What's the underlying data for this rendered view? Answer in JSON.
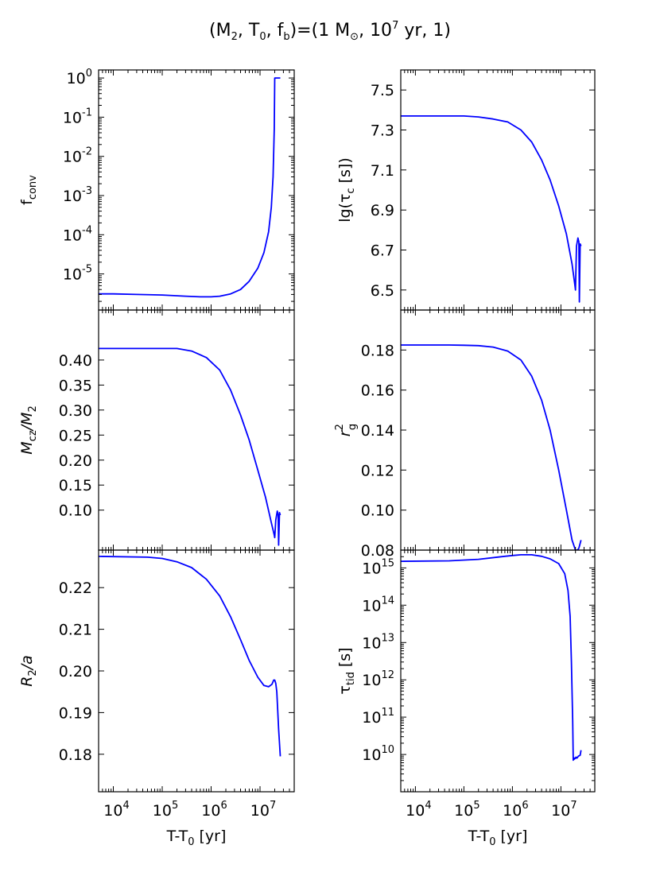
{
  "figure": {
    "title": "(M₂, T₀, f_b)=(1 M☉, 10⁷ yr, 1)",
    "title_parts": {
      "a": "(M",
      "a_sub": "2",
      "b": ", T",
      "b_sub": "0",
      "c": ", f",
      "c_sub": "b",
      "d": ")=(1 M",
      "d_sub": "⊙",
      "e": ", 10",
      "e_sup": "7",
      "f": " yr, 1)"
    },
    "line_color": "#0000ff"
  },
  "chart_data": [
    {
      "type": "line",
      "panel": "left-top",
      "ylabel": "f_conv",
      "ylabel_parts": {
        "main": "f",
        "sub": "conv"
      },
      "xscale": "log",
      "yscale": "log",
      "xlim": [
        5000,
        50000000
      ],
      "ylim": [
        1.2e-06,
        1.6
      ],
      "yticks": [
        {
          "value": 1,
          "base": "10",
          "exp": "0"
        },
        {
          "value": 0.1,
          "base": "10",
          "exp": "-1"
        },
        {
          "value": 0.01,
          "base": "10",
          "exp": "-2"
        },
        {
          "value": 0.001,
          "base": "10",
          "exp": "-3"
        },
        {
          "value": 0.0001,
          "base": "10",
          "exp": "-4"
        },
        {
          "value": 1e-05,
          "base": "10",
          "exp": "-5"
        }
      ],
      "series": [
        {
          "x": [
            5000,
            10000,
            30000,
            100000,
            300000,
            600000,
            1000000,
            1500000,
            2500000,
            4000000,
            6000000,
            9000000,
            12000000,
            15000000,
            17000000,
            18500000,
            19500000,
            20000000,
            26000000
          ],
          "y": [
            3.1e-06,
            3.1e-06,
            3e-06,
            2.9e-06,
            2.7e-06,
            2.6e-06,
            2.6e-06,
            2.7e-06,
            3.1e-06,
            4e-06,
            6.5e-06,
            1.4e-05,
            3.5e-05,
            0.00012,
            0.0005,
            0.003,
            0.05,
            1,
            1
          ]
        }
      ]
    },
    {
      "type": "line",
      "panel": "right-top",
      "ylabel": "lg(τ_c [s])",
      "ylabel_parts": {
        "pre": "lg(τ",
        "sub": "c",
        "post": " [s])"
      },
      "xscale": "log",
      "yscale": "linear",
      "xlim": [
        5000,
        50000000
      ],
      "ylim": [
        6.4,
        7.6
      ],
      "yticks": [
        {
          "value": 7.5,
          "label": "7.5"
        },
        {
          "value": 7.3,
          "label": "7.3"
        },
        {
          "value": 7.1,
          "label": "7.1"
        },
        {
          "value": 6.9,
          "label": "6.9"
        },
        {
          "value": 6.7,
          "label": "6.7"
        },
        {
          "value": 6.5,
          "label": "6.5"
        }
      ],
      "series": [
        {
          "x": [
            5000,
            50000,
            100000,
            200000,
            400000,
            800000,
            1500000,
            2500000,
            4000000,
            6000000,
            9000000,
            13000000,
            17000000,
            19500000,
            20000000,
            21000000,
            22500000,
            23500000,
            24000000,
            25000000,
            26000000
          ],
          "y": [
            7.37,
            7.37,
            7.37,
            7.365,
            7.355,
            7.34,
            7.3,
            7.24,
            7.15,
            7.05,
            6.92,
            6.78,
            6.63,
            6.52,
            6.5,
            6.72,
            6.76,
            6.74,
            6.44,
            6.73,
            6.72
          ]
        }
      ]
    },
    {
      "type": "line",
      "panel": "left-middle",
      "ylabel": "M_cz/M_2",
      "ylabel_parts": {
        "a": "M",
        "a_sub": "cz",
        "b": "/M",
        "b_sub": "2"
      },
      "xscale": "log",
      "yscale": "linear",
      "xlim": [
        5000,
        50000000
      ],
      "ylim": [
        0.02,
        0.5
      ],
      "yticks": [
        {
          "value": 0.4,
          "label": "0.40"
        },
        {
          "value": 0.35,
          "label": "0.35"
        },
        {
          "value": 0.3,
          "label": "0.30"
        },
        {
          "value": 0.25,
          "label": "0.25"
        },
        {
          "value": 0.2,
          "label": "0.20"
        },
        {
          "value": 0.15,
          "label": "0.15"
        },
        {
          "value": 0.1,
          "label": "0.10"
        }
      ],
      "series": [
        {
          "x": [
            5000,
            50000,
            200000,
            400000,
            800000,
            1500000,
            2500000,
            4000000,
            6000000,
            9000000,
            13000000,
            17000000,
            19500000,
            20000000,
            21000000,
            22500000,
            23500000,
            24000000,
            25000000,
            26000000
          ],
          "y": [
            0.423,
            0.423,
            0.423,
            0.418,
            0.405,
            0.38,
            0.34,
            0.29,
            0.24,
            0.18,
            0.125,
            0.075,
            0.05,
            0.045,
            0.08,
            0.098,
            0.09,
            0.03,
            0.095,
            0.09
          ]
        }
      ]
    },
    {
      "type": "line",
      "panel": "right-middle",
      "ylabel": "r_g^2",
      "ylabel_parts": {
        "main": "r",
        "sup": "2",
        "sub": "g"
      },
      "xscale": "log",
      "yscale": "linear",
      "xlim": [
        5000,
        50000000
      ],
      "ylim": [
        0.08,
        0.2
      ],
      "yticks": [
        {
          "value": 0.18,
          "label": "0.18"
        },
        {
          "value": 0.16,
          "label": "0.16"
        },
        {
          "value": 0.14,
          "label": "0.14"
        },
        {
          "value": 0.12,
          "label": "0.12"
        },
        {
          "value": 0.1,
          "label": "0.10"
        },
        {
          "value": 0.08,
          "label": "0.08"
        }
      ],
      "series": [
        {
          "x": [
            5000,
            50000,
            100000,
            200000,
            400000,
            800000,
            1500000,
            2500000,
            4000000,
            6000000,
            9000000,
            13000000,
            17000000,
            20000000,
            22000000,
            23500000,
            26000000
          ],
          "y": [
            0.1825,
            0.1825,
            0.1824,
            0.1822,
            0.1815,
            0.1795,
            0.175,
            0.167,
            0.155,
            0.14,
            0.12,
            0.1,
            0.085,
            0.08,
            0.08,
            0.081,
            0.085
          ]
        }
      ]
    },
    {
      "type": "line",
      "panel": "left-bottom",
      "ylabel": "R_2/a",
      "ylabel_parts": {
        "a": "R",
        "a_sub": "2",
        "b": "/a"
      },
      "xlabel": "T-T_0 [yr]",
      "xlabel_parts": {
        "a": "T-T",
        "a_sub": "0",
        "b": " [yr]"
      },
      "xscale": "log",
      "yscale": "linear",
      "xlim": [
        5000,
        50000000
      ],
      "ylim": [
        0.171,
        0.229
      ],
      "xticks": [
        {
          "value": 10000,
          "base": "10",
          "exp": "4"
        },
        {
          "value": 100000,
          "base": "10",
          "exp": "5"
        },
        {
          "value": 1000000,
          "base": "10",
          "exp": "6"
        },
        {
          "value": 10000000,
          "base": "10",
          "exp": "7"
        }
      ],
      "yticks": [
        {
          "value": 0.22,
          "label": "0.22"
        },
        {
          "value": 0.21,
          "label": "0.21"
        },
        {
          "value": 0.2,
          "label": "0.20"
        },
        {
          "value": 0.19,
          "label": "0.19"
        },
        {
          "value": 0.18,
          "label": "0.18"
        }
      ],
      "series": [
        {
          "x": [
            5000,
            50000,
            100000,
            200000,
            400000,
            800000,
            1500000,
            2500000,
            4000000,
            6000000,
            9000000,
            12000000,
            15000000,
            17500000,
            19000000,
            20000000,
            21000000,
            22000000,
            24000000,
            26000000
          ],
          "y": [
            0.2275,
            0.2273,
            0.227,
            0.2262,
            0.2248,
            0.222,
            0.218,
            0.213,
            0.2075,
            0.2025,
            0.1985,
            0.1965,
            0.1962,
            0.1968,
            0.1978,
            0.1978,
            0.197,
            0.195,
            0.186,
            0.1795
          ]
        }
      ]
    },
    {
      "type": "line",
      "panel": "right-bottom",
      "ylabel": "τ_tid [s]",
      "ylabel_parts": {
        "pre": "τ",
        "sub": "tid",
        "post": " [s]"
      },
      "xlabel": "T-T_0 [yr]",
      "xlabel_parts": {
        "a": "T-T",
        "a_sub": "0",
        "b": " [yr]"
      },
      "xscale": "log",
      "yscale": "log",
      "xlim": [
        5000,
        50000000
      ],
      "ylim": [
        1000000000,
        3000000000000000
      ],
      "xticks": [
        {
          "value": 10000,
          "base": "10",
          "exp": "4"
        },
        {
          "value": 100000,
          "base": "10",
          "exp": "5"
        },
        {
          "value": 1000000,
          "base": "10",
          "exp": "6"
        },
        {
          "value": 10000000,
          "base": "10",
          "exp": "7"
        }
      ],
      "yticks": [
        {
          "value": 1000000000000000,
          "base": "10",
          "exp": "15"
        },
        {
          "value": 100000000000000,
          "base": "10",
          "exp": "14"
        },
        {
          "value": 10000000000000,
          "base": "10",
          "exp": "13"
        },
        {
          "value": 1000000000000,
          "base": "10",
          "exp": "12"
        },
        {
          "value": 100000000000,
          "base": "10",
          "exp": "11"
        },
        {
          "value": 10000000000,
          "base": "10",
          "exp": "10"
        }
      ],
      "series": [
        {
          "x": [
            5000,
            50000,
            200000,
            500000,
            1000000,
            1500000,
            2500000,
            4000000,
            6000000,
            9000000,
            12000000,
            14000000,
            15500000,
            16500000,
            17500000,
            18000000,
            18500000,
            19000000,
            19500000,
            20000000,
            20500000,
            21500000,
            23000000,
            25000000,
            26000000
          ],
          "y": [
            1500000000000000,
            1550000000000000,
            1700000000000000,
            1950000000000000,
            2150000000000000,
            2250000000000000,
            2250000000000000,
            2050000000000000,
            1750000000000000,
            1300000000000000,
            700000000000000,
            250000000000000,
            50000000000000,
            3000000000000,
            80000000000,
            7000000000,
            8000000000,
            7500000000,
            8000000000,
            7800000000,
            8500000000,
            8000000000,
            9000000000,
            9500000000,
            13000000000
          ]
        }
      ]
    }
  ]
}
